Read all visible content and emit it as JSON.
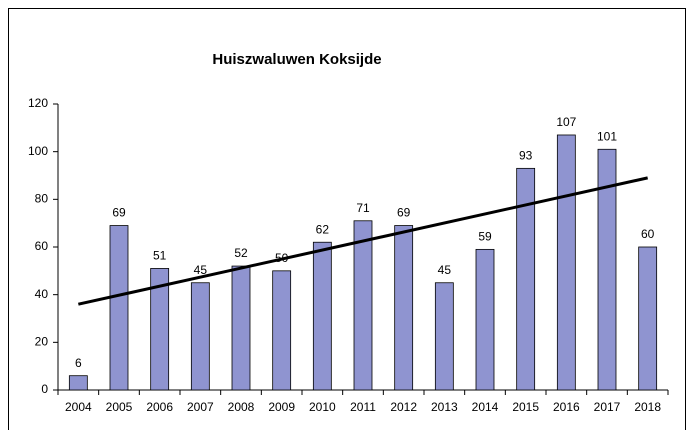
{
  "chart_data": {
    "type": "bar",
    "title": "Huiszwaluwen Koksijde",
    "categories": [
      "2004",
      "2005",
      "2006",
      "2007",
      "2008",
      "2009",
      "2010",
      "2011",
      "2012",
      "2013",
      "2014",
      "2015",
      "2016",
      "2017",
      "2018"
    ],
    "values": [
      6,
      69,
      51,
      45,
      52,
      50,
      62,
      71,
      69,
      45,
      59,
      93,
      107,
      101,
      60
    ],
    "color": "#8f94d0",
    "ylim": [
      0,
      120
    ],
    "yticks": [
      0,
      20,
      40,
      60,
      80,
      100,
      120
    ],
    "grid": false,
    "trendline": {
      "start": 36,
      "end": 89,
      "color": "#000000"
    }
  }
}
